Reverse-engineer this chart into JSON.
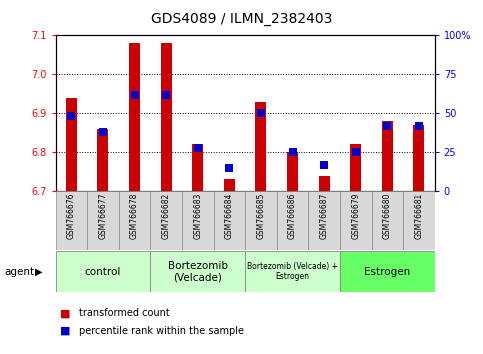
{
  "title": "GDS4089 / ILMN_2382403",
  "samples": [
    "GSM766676",
    "GSM766677",
    "GSM766678",
    "GSM766682",
    "GSM766683",
    "GSM766684",
    "GSM766685",
    "GSM766686",
    "GSM766687",
    "GSM766679",
    "GSM766680",
    "GSM766681"
  ],
  "red_values": [
    6.94,
    6.86,
    7.08,
    7.08,
    6.82,
    6.73,
    6.93,
    6.8,
    6.74,
    6.82,
    6.88,
    6.87
  ],
  "blue_values_pct": [
    48,
    38,
    62,
    62,
    28,
    15,
    50,
    25,
    17,
    25,
    42,
    42
  ],
  "ylim_left": [
    6.7,
    7.1
  ],
  "ylim_right": [
    0,
    100
  ],
  "yticks_left": [
    6.7,
    6.8,
    6.9,
    7.0,
    7.1
  ],
  "yticks_right": [
    0,
    25,
    50,
    75,
    100
  ],
  "group_labels": [
    "control",
    "Bortezomib\n(Velcade)",
    "Bortezomib (Velcade) +\nEstrogen",
    "Estrogen"
  ],
  "group_ranges": [
    [
      0,
      3
    ],
    [
      3,
      6
    ],
    [
      6,
      9
    ],
    [
      9,
      12
    ]
  ],
  "group_colors": [
    "#ccffcc",
    "#ccffcc",
    "#ccffcc",
    "#66ff66"
  ],
  "agent_label": "agent",
  "legend_red": "transformed count",
  "legend_blue": "percentile rank within the sample",
  "bar_color": "#cc0000",
  "dot_color": "#0000cc",
  "bar_width": 0.35,
  "dot_size": 40,
  "title_fontsize": 10,
  "axis_fontsize": 7.5,
  "tick_fontsize": 7,
  "label_fontsize": 5.5,
  "group_fontsize": 7.5,
  "group_fontsize_small": 5.5,
  "legend_fontsize": 7
}
